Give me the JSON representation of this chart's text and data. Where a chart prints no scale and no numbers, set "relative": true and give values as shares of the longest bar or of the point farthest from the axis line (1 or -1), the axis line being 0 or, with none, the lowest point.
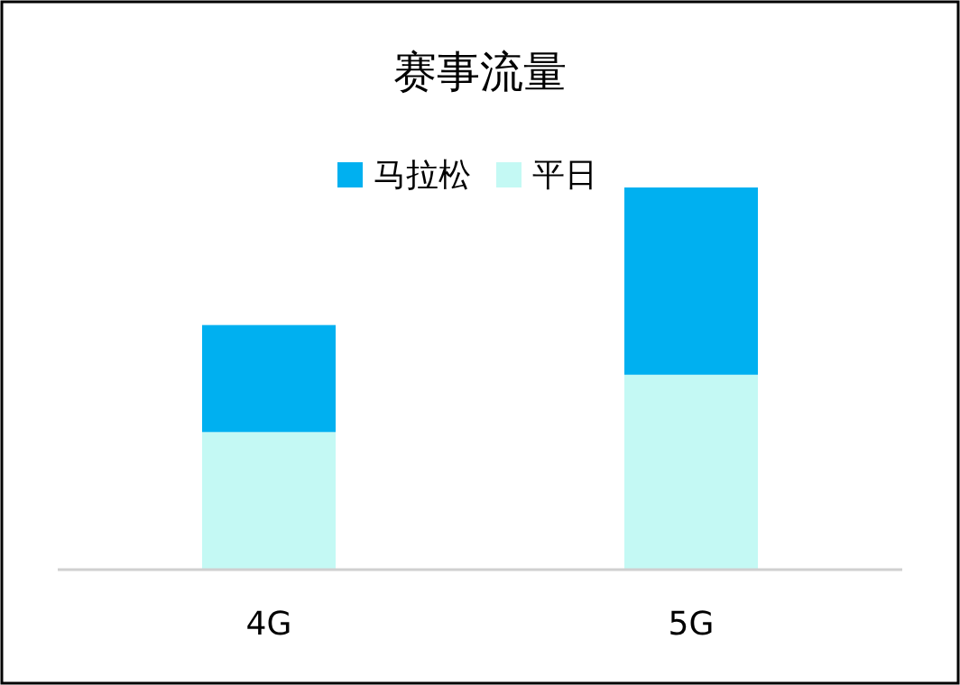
{
  "chart_data": {
    "type": "bar",
    "title": "赛事流量",
    "categories": [
      "4G",
      "5G"
    ],
    "relative": true,
    "legend": "top",
    "stacked": true,
    "series": [
      {
        "name": "平日",
        "color": "#c4f9f4",
        "values": [
          0.36,
          0.51
        ]
      },
      {
        "name": "马拉松",
        "color": "#00b0f0",
        "values": [
          0.28,
          0.49
        ]
      }
    ]
  }
}
